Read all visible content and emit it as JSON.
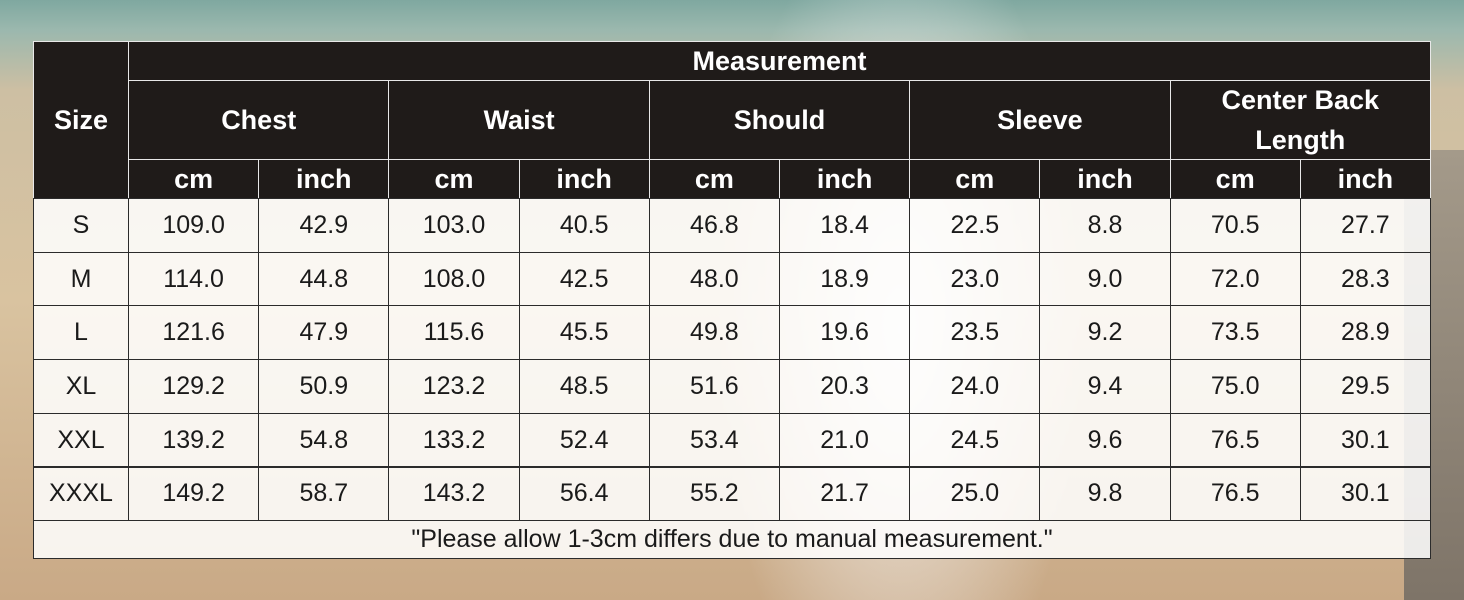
{
  "table": {
    "title": "Measurement",
    "size_label": "Size",
    "groups": [
      {
        "name": "Chest",
        "units": [
          "cm",
          "inch"
        ]
      },
      {
        "name": "Waist",
        "units": [
          "cm",
          "inch"
        ]
      },
      {
        "name": "Should",
        "units": [
          "cm",
          "inch"
        ]
      },
      {
        "name": "Sleeve",
        "units": [
          "cm",
          "inch"
        ]
      },
      {
        "name": "Center Back Length",
        "units": [
          "cm",
          "inch"
        ]
      }
    ],
    "rows": [
      [
        "S",
        "109.0",
        "42.9",
        "103.0",
        "40.5",
        "46.8",
        "18.4",
        "22.5",
        "8.8",
        "70.5",
        "27.7"
      ],
      [
        "M",
        "114.0",
        "44.8",
        "108.0",
        "42.5",
        "48.0",
        "18.9",
        "23.0",
        "9.0",
        "72.0",
        "28.3"
      ],
      [
        "L",
        "121.6",
        "47.9",
        "115.6",
        "45.5",
        "49.8",
        "19.6",
        "23.5",
        "9.2",
        "73.5",
        "28.9"
      ],
      [
        "XL",
        "129.2",
        "50.9",
        "123.2",
        "48.5",
        "51.6",
        "20.3",
        "24.0",
        "9.4",
        "75.0",
        "29.5"
      ],
      [
        "XXL",
        "139.2",
        "54.8",
        "133.2",
        "52.4",
        "53.4",
        "21.0",
        "24.5",
        "9.6",
        "76.5",
        "30.1"
      ],
      [
        "XXXL",
        "149.2",
        "58.7",
        "143.2",
        "56.4",
        "55.2",
        "21.7",
        "25.0",
        "9.8",
        "76.5",
        "30.1"
      ]
    ],
    "note": "\"Please allow 1-3cm differs due to manual measurement.\""
  }
}
